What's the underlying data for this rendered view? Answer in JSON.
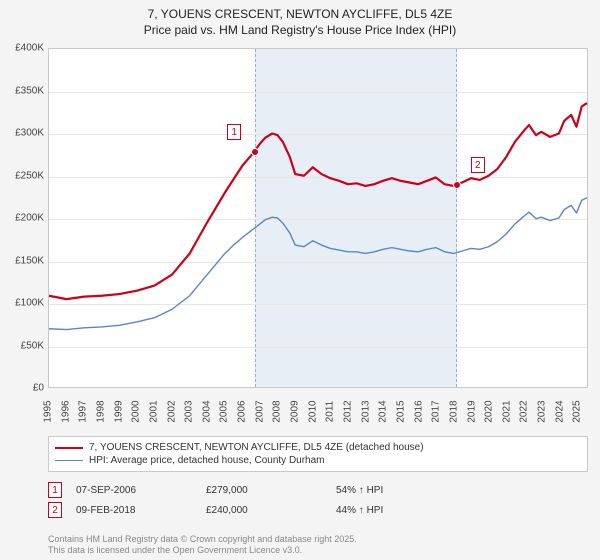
{
  "title_line1": "7, YOUENS CRESCENT, NEWTON AYCLIFFE, DL5 4ZE",
  "title_line2": "Price paid vs. HM Land Registry's House Price Index (HPI)",
  "chart": {
    "type": "line",
    "background_color": "#ffffff",
    "grid_color": "#e6e6e6",
    "border_color": "#c9c9c9",
    "ylim": [
      0,
      400000
    ],
    "ytick_step": 50000,
    "yticks": [
      "£0",
      "£50K",
      "£100K",
      "£150K",
      "£200K",
      "£250K",
      "£300K",
      "£350K",
      "£400K"
    ],
    "xmin": 1995,
    "xmax": 2025.6,
    "xticks": [
      "1995",
      "1996",
      "1997",
      "1998",
      "1999",
      "2000",
      "2001",
      "2002",
      "2003",
      "2004",
      "2005",
      "2006",
      "2007",
      "2008",
      "2009",
      "2010",
      "2011",
      "2012",
      "2013",
      "2014",
      "2015",
      "2016",
      "2017",
      "2018",
      "2019",
      "2020",
      "2021",
      "2022",
      "2023",
      "2024",
      "2025"
    ],
    "label_fontsize": 10,
    "band": {
      "start": 2006.68,
      "end": 2018.11,
      "fill": "rgba(130,160,200,0.18)"
    },
    "series": [
      {
        "name": "7, YOUENS CRESCENT, NEWTON AYCLIFFE, DL5 4ZE (detached house)",
        "color": "#cc0018",
        "line_width": 2.2,
        "points": [
          [
            1995,
            108000
          ],
          [
            1996,
            104000
          ],
          [
            1997,
            107000
          ],
          [
            1998,
            108000
          ],
          [
            1999,
            110000
          ],
          [
            2000,
            114000
          ],
          [
            2001,
            120000
          ],
          [
            2002,
            133000
          ],
          [
            2003,
            158000
          ],
          [
            2004,
            195000
          ],
          [
            2005,
            230000
          ],
          [
            2005.5,
            246000
          ],
          [
            2006,
            262000
          ],
          [
            2006.5,
            274000
          ],
          [
            2006.68,
            279000
          ],
          [
            2007,
            288000
          ],
          [
            2007.3,
            295000
          ],
          [
            2007.7,
            300000
          ],
          [
            2008,
            298000
          ],
          [
            2008.3,
            290000
          ],
          [
            2008.7,
            272000
          ],
          [
            2009,
            252000
          ],
          [
            2009.5,
            250000
          ],
          [
            2010,
            260000
          ],
          [
            2010.5,
            252000
          ],
          [
            2011,
            247000
          ],
          [
            2011.5,
            244000
          ],
          [
            2012,
            240000
          ],
          [
            2012.5,
            241000
          ],
          [
            2013,
            238000
          ],
          [
            2013.5,
            240000
          ],
          [
            2014,
            244000
          ],
          [
            2014.5,
            247000
          ],
          [
            2015,
            244000
          ],
          [
            2015.5,
            242000
          ],
          [
            2016,
            240000
          ],
          [
            2016.5,
            244000
          ],
          [
            2017,
            248000
          ],
          [
            2017.5,
            240000
          ],
          [
            2018,
            238000
          ],
          [
            2018.11,
            240000
          ],
          [
            2018.5,
            242000
          ],
          [
            2019,
            247000
          ],
          [
            2019.5,
            245000
          ],
          [
            2020,
            250000
          ],
          [
            2020.5,
            258000
          ],
          [
            2021,
            272000
          ],
          [
            2021.5,
            290000
          ],
          [
            2022,
            303000
          ],
          [
            2022.3,
            310000
          ],
          [
            2022.7,
            298000
          ],
          [
            2023,
            302000
          ],
          [
            2023.5,
            296000
          ],
          [
            2024,
            300000
          ],
          [
            2024.3,
            315000
          ],
          [
            2024.7,
            322000
          ],
          [
            2025,
            308000
          ],
          [
            2025.3,
            332000
          ],
          [
            2025.6,
            336000
          ]
        ]
      },
      {
        "name": "HPI: Average price, detached house, County Durham",
        "color": "#5a86c4",
        "line_width": 1.4,
        "points": [
          [
            1995,
            69000
          ],
          [
            1996,
            68000
          ],
          [
            1997,
            70000
          ],
          [
            1998,
            71000
          ],
          [
            1999,
            73000
          ],
          [
            2000,
            77000
          ],
          [
            2001,
            82000
          ],
          [
            2002,
            92000
          ],
          [
            2003,
            108000
          ],
          [
            2004,
            133000
          ],
          [
            2005,
            158000
          ],
          [
            2005.5,
            168000
          ],
          [
            2006,
            177000
          ],
          [
            2006.5,
            185000
          ],
          [
            2007,
            193000
          ],
          [
            2007.3,
            198000
          ],
          [
            2007.7,
            201000
          ],
          [
            2008,
            200000
          ],
          [
            2008.3,
            194000
          ],
          [
            2008.7,
            182000
          ],
          [
            2009,
            168000
          ],
          [
            2009.5,
            166000
          ],
          [
            2010,
            173000
          ],
          [
            2010.5,
            168000
          ],
          [
            2011,
            164000
          ],
          [
            2011.5,
            162000
          ],
          [
            2012,
            160000
          ],
          [
            2012.5,
            160000
          ],
          [
            2013,
            158000
          ],
          [
            2013.5,
            160000
          ],
          [
            2014,
            163000
          ],
          [
            2014.5,
            165000
          ],
          [
            2015,
            163000
          ],
          [
            2015.5,
            161000
          ],
          [
            2016,
            160000
          ],
          [
            2016.5,
            163000
          ],
          [
            2017,
            165000
          ],
          [
            2017.5,
            160000
          ],
          [
            2018,
            158000
          ],
          [
            2018.5,
            161000
          ],
          [
            2019,
            164000
          ],
          [
            2019.5,
            163000
          ],
          [
            2020,
            166000
          ],
          [
            2020.5,
            172000
          ],
          [
            2021,
            181000
          ],
          [
            2021.5,
            193000
          ],
          [
            2022,
            202000
          ],
          [
            2022.3,
            207000
          ],
          [
            2022.7,
            199000
          ],
          [
            2023,
            201000
          ],
          [
            2023.5,
            197000
          ],
          [
            2024,
            200000
          ],
          [
            2024.3,
            210000
          ],
          [
            2024.7,
            215000
          ],
          [
            2025,
            206000
          ],
          [
            2025.3,
            221000
          ],
          [
            2025.6,
            224000
          ]
        ]
      }
    ],
    "markers": [
      {
        "n": "1",
        "x": 2006.68,
        "y": 279000
      },
      {
        "n": "2",
        "x": 2018.11,
        "y": 240000
      }
    ]
  },
  "legend": {
    "items": [
      {
        "color": "#cc0018",
        "thick": 2.2,
        "label": "7, YOUENS CRESCENT, NEWTON AYCLIFFE, DL5 4ZE (detached house)"
      },
      {
        "color": "#5a86c4",
        "thick": 1.4,
        "label": "HPI: Average price, detached house, County Durham"
      }
    ]
  },
  "sales": [
    {
      "n": "1",
      "date": "07-SEP-2006",
      "price": "£279,000",
      "pct": "54% ↑ HPI"
    },
    {
      "n": "2",
      "date": "09-FEB-2018",
      "price": "£240,000",
      "pct": "44% ↑ HPI"
    }
  ],
  "footer_line1": "Contains HM Land Registry data © Crown copyright and database right 2025.",
  "footer_line2": "This data is licensed under the Open Government Licence v3.0."
}
